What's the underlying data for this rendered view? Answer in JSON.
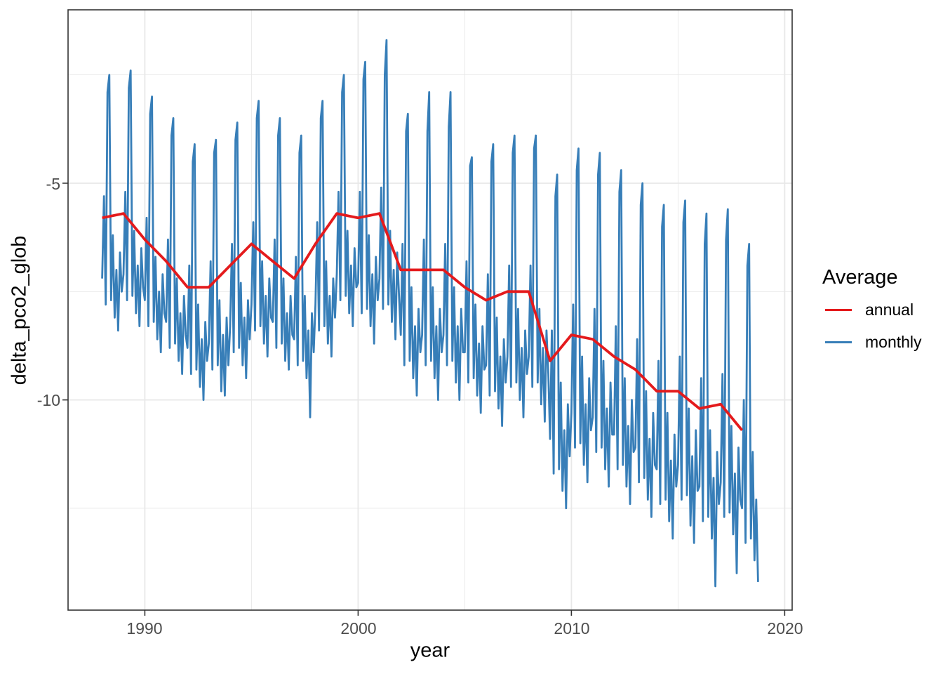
{
  "figure_title": "",
  "axes": {
    "x_title": "year",
    "y_title": "delta_pco2_glob"
  },
  "legend": {
    "title": "Average",
    "items": [
      {
        "label": "annual",
        "color": "#e41a1c"
      },
      {
        "label": "monthly",
        "color": "#377eb8"
      }
    ]
  },
  "chart_data": {
    "type": "line",
    "title": "",
    "xlabel": "year",
    "ylabel": "delta_pco2_glob",
    "grid": true,
    "legend_position": "right",
    "xlim": [
      1986.4,
      2020.35
    ],
    "ylim": [
      -14.85,
      -1.0
    ],
    "x_ticks": {
      "major": [
        1990,
        2000,
        2010,
        2020
      ],
      "minor": [
        1995,
        2005,
        2015
      ],
      "labels": [
        "1990",
        "2000",
        "2010",
        "2020"
      ]
    },
    "y_ticks": {
      "major": [
        -5,
        -10
      ],
      "minor": [
        -2.5,
        -7.5,
        -12.5
      ],
      "labels": [
        "-5",
        "-10"
      ]
    },
    "series": [
      {
        "name": "monthly",
        "color": "#377eb8",
        "stroke_width": 2.8,
        "x_start": 1988,
        "points_per_year": 12,
        "y": [
          -7.2,
          -5.3,
          -7.8,
          -2.9,
          -2.5,
          -7.7,
          -6.2,
          -8.1,
          -7.0,
          -8.4,
          -6.6,
          -7.5,
          -7.1,
          -5.2,
          -7.7,
          -2.8,
          -2.4,
          -7.6,
          -6.1,
          -8.0,
          -6.9,
          -8.3,
          -6.5,
          -7.4,
          -7.7,
          -5.8,
          -8.3,
          -3.4,
          -3.0,
          -8.2,
          -6.7,
          -8.6,
          -7.5,
          -8.9,
          -7.1,
          -8.0,
          -8.2,
          -6.3,
          -8.8,
          -3.9,
          -3.5,
          -8.7,
          -7.2,
          -9.1,
          -8.0,
          -9.4,
          -7.6,
          -8.5,
          -8.8,
          -6.9,
          -9.4,
          -4.5,
          -4.1,
          -9.3,
          -7.8,
          -9.7,
          -8.6,
          -10.0,
          -8.2,
          -9.1,
          -8.7,
          -6.8,
          -9.3,
          -4.3,
          -4.0,
          -9.2,
          -7.7,
          -9.8,
          -8.5,
          -9.9,
          -8.1,
          -9.2,
          -8.3,
          -6.4,
          -8.9,
          -4.0,
          -3.6,
          -8.8,
          -7.3,
          -9.2,
          -8.1,
          -9.5,
          -7.7,
          -8.6,
          -7.8,
          -5.9,
          -8.4,
          -3.5,
          -3.1,
          -8.3,
          -6.8,
          -8.7,
          -7.6,
          -9.0,
          -7.2,
          -8.1,
          -8.2,
          -6.3,
          -8.8,
          -3.9,
          -3.5,
          -8.7,
          -7.2,
          -9.1,
          -8.0,
          -9.3,
          -7.6,
          -8.5,
          -8.6,
          -6.7,
          -9.2,
          -4.3,
          -3.9,
          -9.1,
          -7.6,
          -9.5,
          -8.4,
          -10.4,
          -8.0,
          -8.9,
          -7.8,
          -5.9,
          -8.4,
          -3.5,
          -3.1,
          -8.3,
          -6.8,
          -8.7,
          -7.6,
          -9.0,
          -7.2,
          -8.1,
          -7.1,
          -5.2,
          -7.7,
          -2.9,
          -2.5,
          -7.6,
          -6.1,
          -8.0,
          -6.9,
          -8.3,
          -6.5,
          -7.4,
          -7.3,
          -5.2,
          -8.0,
          -2.6,
          -2.2,
          -7.9,
          -6.2,
          -8.3,
          -7.1,
          -8.7,
          -6.7,
          -7.7,
          -7.2,
          -5.1,
          -7.9,
          -2.5,
          -1.7,
          -7.8,
          -6.1,
          -8.2,
          -7.0,
          -8.6,
          -6.6,
          -7.6,
          -8.5,
          -6.4,
          -9.2,
          -3.8,
          -3.4,
          -9.1,
          -7.4,
          -9.5,
          -8.3,
          -9.9,
          -7.9,
          -8.9,
          -8.5,
          -6.3,
          -9.2,
          -3.8,
          -2.9,
          -9.1,
          -7.4,
          -9.5,
          -8.3,
          -10.0,
          -7.9,
          -8.9,
          -8.5,
          -6.4,
          -9.2,
          -3.7,
          -2.9,
          -9.1,
          -7.4,
          -9.6,
          -8.3,
          -10.0,
          -7.9,
          -8.9,
          -8.9,
          -6.8,
          -9.6,
          -4.6,
          -4.4,
          -9.5,
          -7.8,
          -9.9,
          -8.7,
          -10.3,
          -8.3,
          -9.3,
          -9.2,
          -7.1,
          -9.9,
          -4.5,
          -4.1,
          -9.8,
          -8.1,
          -10.2,
          -9.0,
          -10.6,
          -8.6,
          -9.6,
          -9.0,
          -6.9,
          -9.7,
          -4.3,
          -3.9,
          -9.6,
          -7.9,
          -10.0,
          -8.8,
          -10.4,
          -8.4,
          -9.4,
          -9.0,
          -6.9,
          -9.7,
          -4.2,
          -3.9,
          -9.6,
          -7.9,
          -10.1,
          -8.8,
          -10.5,
          -8.4,
          -9.4,
          -10.9,
          -8.4,
          -11.7,
          -5.3,
          -4.8,
          -11.6,
          -9.6,
          -12.1,
          -10.7,
          -12.5,
          -10.1,
          -11.3,
          -10.3,
          -7.8,
          -11.1,
          -4.7,
          -4.2,
          -11.0,
          -9.0,
          -11.5,
          -10.1,
          -11.9,
          -9.5,
          -10.7,
          -10.4,
          -7.9,
          -11.2,
          -4.8,
          -4.3,
          -11.1,
          -9.1,
          -11.6,
          -10.2,
          -12.0,
          -9.6,
          -10.8,
          -10.8,
          -8.3,
          -11.6,
          -5.2,
          -4.7,
          -11.5,
          -9.5,
          -12.0,
          -10.6,
          -12.4,
          -10.0,
          -11.2,
          -11.1,
          -8.6,
          -11.9,
          -5.5,
          -5.0,
          -11.8,
          -9.8,
          -12.3,
          -10.9,
          -12.7,
          -10.3,
          -11.5,
          -11.6,
          -9.1,
          -12.4,
          -6.0,
          -5.5,
          -12.3,
          -10.3,
          -12.8,
          -11.4,
          -13.2,
          -10.8,
          -12.0,
          -11.5,
          -9.0,
          -12.3,
          -5.9,
          -5.4,
          -12.2,
          -10.2,
          -12.9,
          -11.3,
          -13.3,
          -10.7,
          -12.1,
          -12.0,
          -9.5,
          -12.8,
          -6.4,
          -5.7,
          -12.7,
          -10.7,
          -13.2,
          -11.8,
          -14.3,
          -11.2,
          -12.4,
          -11.9,
          -9.4,
          -12.7,
          -6.3,
          -5.6,
          -12.6,
          -10.6,
          -13.1,
          -11.7,
          -14.0,
          -11.1,
          -12.3,
          -12.5,
          -10.0,
          -13.3,
          -6.9,
          -6.4,
          -13.2,
          -11.2,
          -13.7,
          -12.3,
          -14.2
        ]
      },
      {
        "name": "annual",
        "color": "#e41a1c",
        "stroke_width": 3.8,
        "x": [
          1988,
          1989,
          1990,
          1991,
          1992,
          1993,
          1994,
          1995,
          1996,
          1997,
          1998,
          1999,
          2000,
          2001,
          2002,
          2003,
          2004,
          2005,
          2006,
          2007,
          2008,
          2009,
          2010,
          2011,
          2012,
          2013,
          2014,
          2015,
          2016,
          2017,
          2018
        ],
        "y": [
          -5.8,
          -5.7,
          -6.3,
          -6.8,
          -7.4,
          -7.4,
          -6.9,
          -6.4,
          -6.8,
          -7.2,
          -6.4,
          -5.7,
          -5.8,
          -5.7,
          -7.0,
          -7.0,
          -7.0,
          -7.4,
          -7.7,
          -7.5,
          -7.5,
          -9.1,
          -8.5,
          -8.6,
          -9.0,
          -9.3,
          -9.8,
          -9.8,
          -10.2,
          -10.1,
          -10.7
        ]
      }
    ]
  }
}
